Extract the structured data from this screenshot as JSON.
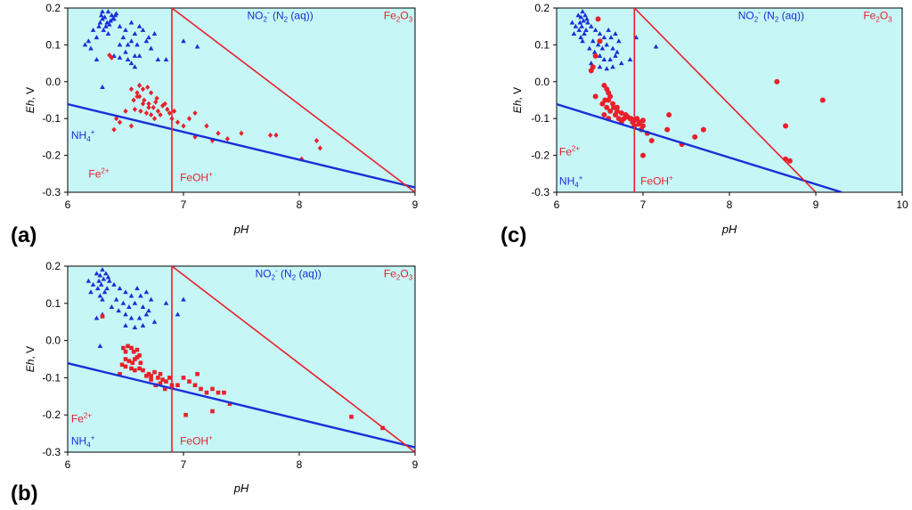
{
  "chart_data": [
    {
      "type": "scatter",
      "panel_label": "(a)",
      "xlabel": "pH",
      "ylabel_italic": "Eh",
      "ylabel_rest": ", V",
      "xlim": [
        6,
        9
      ],
      "ylim": [
        -0.3,
        0.2
      ],
      "xticks": [
        6,
        7,
        8,
        9
      ],
      "xtick_labels": [
        "6",
        "7",
        "8",
        "9"
      ],
      "yticks": [
        0.2,
        0.1,
        0.0,
        -0.1,
        -0.2,
        -0.3
      ],
      "ytick_labels": [
        "0.2",
        "0.1",
        "0.0",
        "-0.1",
        "-0.2",
        "-0.3"
      ],
      "colors": {
        "background": "#c6f6f6",
        "red": "#e8202a",
        "blue": "#1a2fd6"
      },
      "lines": [
        {
          "name": "NH4+/N2 boundary",
          "color": "blue",
          "width": 2.4,
          "points": [
            [
              6,
              -0.061
            ],
            [
              9,
              -0.287
            ]
          ]
        },
        {
          "name": "Fe2+/FeOH+ boundary",
          "color": "red",
          "width": 1.6,
          "points": [
            [
              6.9,
              0.2
            ],
            [
              6.9,
              -0.3
            ]
          ]
        },
        {
          "name": "FeOH+/Fe2O3 boundary",
          "color": "red",
          "width": 1.6,
          "points": [
            [
              6.9,
              0.2
            ],
            [
              9,
              -0.3
            ]
          ]
        }
      ],
      "annotations": [
        {
          "text": "NO",
          "sub": "2",
          "sup": "-",
          "tail": " (N",
          "sub2": "2",
          "tail2": " (aq))",
          "color": "blue",
          "x": 7.55,
          "y": 0.17
        },
        {
          "text": "Fe",
          "sub": "2",
          "tail": "O",
          "sub2": "3",
          "color": "red",
          "x": 8.73,
          "y": 0.17
        },
        {
          "text": "NH",
          "sub": "4",
          "sup": "+",
          "color": "blue",
          "x": 6.03,
          "y": -0.155
        },
        {
          "text": "Fe",
          "sup": "2+",
          "color": "red",
          "x": 6.18,
          "y": -0.26
        },
        {
          "text": "FeOH",
          "sup": "+",
          "color": "red",
          "x": 6.97,
          "y": -0.27
        }
      ],
      "series": [
        {
          "name": "NO2- (N2 aq) samples",
          "marker": "triangle",
          "color": "blue",
          "x": [
            6.35,
            6.38,
            6.4,
            6.42,
            6.32,
            6.3,
            6.28,
            6.33,
            6.37,
            6.36,
            6.31,
            6.39,
            6.41,
            6.34,
            6.29,
            6.3,
            6.27,
            6.35,
            6.22,
            6.25,
            6.45,
            6.5,
            6.55,
            6.58,
            6.62,
            6.65,
            6.7,
            6.75,
            6.55,
            6.6,
            6.48,
            6.52,
            6.68,
            6.72,
            6.45,
            6.5,
            6.58,
            6.2,
            6.15,
            6.18,
            6.25,
            6.4,
            6.45,
            6.52,
            6.62,
            6.78,
            6.55,
            6.85,
            6.58,
            7.0,
            7.12,
            6.3
          ],
          "y": [
            0.19,
            0.18,
            0.17,
            0.185,
            0.175,
            0.19,
            0.16,
            0.15,
            0.165,
            0.155,
            0.14,
            0.17,
            0.18,
            0.16,
            0.18,
            0.17,
            0.15,
            0.13,
            0.14,
            0.12,
            0.15,
            0.14,
            0.16,
            0.13,
            0.15,
            0.14,
            0.12,
            0.13,
            0.11,
            0.1,
            0.12,
            0.1,
            0.11,
            0.09,
            0.1,
            0.08,
            0.07,
            0.09,
            0.1,
            0.11,
            0.06,
            0.07,
            0.065,
            0.06,
            0.07,
            0.06,
            0.05,
            0.06,
            0.04,
            0.11,
            0.095,
            -0.015
          ]
        },
        {
          "name": "Eh-pH measurements (a)",
          "marker": "diamond",
          "color": "red",
          "x": [
            6.36,
            6.38,
            6.55,
            6.6,
            6.62,
            6.57,
            6.65,
            6.7,
            6.58,
            6.63,
            6.68,
            6.72,
            6.75,
            6.6,
            6.66,
            6.7,
            6.74,
            6.78,
            6.8,
            6.65,
            6.72,
            6.76,
            6.82,
            6.86,
            6.88,
            6.9,
            6.62,
            6.69,
            6.77,
            6.84,
            6.92,
            6.95,
            7.0,
            7.05,
            7.1,
            6.55,
            6.5,
            6.45,
            6.42,
            6.4,
            7.2,
            7.3,
            7.38,
            7.5,
            7.25,
            7.1,
            7.8,
            7.75,
            8.15,
            8.18,
            8.02
          ],
          "y": [
            0.072,
            0.065,
            -0.02,
            -0.03,
            -0.04,
            -0.05,
            -0.06,
            -0.07,
            -0.075,
            -0.08,
            -0.085,
            -0.09,
            -0.1,
            -0.04,
            -0.05,
            -0.06,
            -0.07,
            -0.08,
            -0.09,
            -0.02,
            -0.03,
            -0.055,
            -0.065,
            -0.075,
            -0.085,
            -0.1,
            -0.01,
            -0.015,
            -0.045,
            -0.06,
            -0.08,
            -0.11,
            -0.12,
            -0.1,
            -0.085,
            -0.12,
            -0.08,
            -0.11,
            -0.1,
            -0.13,
            -0.12,
            -0.14,
            -0.155,
            -0.14,
            -0.16,
            -0.15,
            -0.145,
            -0.145,
            -0.16,
            -0.18,
            -0.21
          ]
        }
      ]
    },
    {
      "type": "scatter",
      "panel_label": "(b)",
      "xlabel": "pH",
      "ylabel_italic": "Eh",
      "ylabel_rest": ", V",
      "xlim": [
        6,
        9
      ],
      "ylim": [
        -0.3,
        0.2
      ],
      "xticks": [
        6,
        7,
        8,
        9
      ],
      "xtick_labels": [
        "6",
        "7",
        "8",
        "9"
      ],
      "yticks": [
        0.2,
        0.1,
        0.0,
        -0.1,
        -0.2,
        -0.3
      ],
      "ytick_labels": [
        "0.2",
        "0.1",
        "0.0",
        "-0.1",
        "-0.2",
        "-0.3"
      ],
      "colors": {
        "background": "#c6f6f6",
        "red": "#e8202a",
        "blue": "#1a2fd6"
      },
      "lines": [
        {
          "name": "NH4+/N2 boundary",
          "color": "blue",
          "width": 2.4,
          "points": [
            [
              6,
              -0.061
            ],
            [
              9,
              -0.287
            ]
          ]
        },
        {
          "name": "Fe2+/FeOH+ boundary",
          "color": "red",
          "width": 1.6,
          "points": [
            [
              6.9,
              0.2
            ],
            [
              6.9,
              -0.3
            ]
          ]
        },
        {
          "name": "FeOH+/Fe2O3 boundary",
          "color": "red",
          "width": 1.6,
          "points": [
            [
              6.9,
              0.2
            ],
            [
              9,
              -0.3
            ]
          ]
        }
      ],
      "annotations": [
        {
          "text": "NO",
          "sub": "2",
          "sup": "-",
          "tail": " (N",
          "sub2": "2",
          "tail2": " (aq))",
          "color": "blue",
          "x": 7.62,
          "y": 0.17
        },
        {
          "text": "Fe",
          "sub": "2",
          "tail": "O",
          "sub2": "3",
          "color": "red",
          "x": 8.73,
          "y": 0.17
        },
        {
          "text": "Fe",
          "sup": "2+",
          "color": "red",
          "x": 6.03,
          "y": -0.22
        },
        {
          "text": "NH",
          "sub": "4",
          "sup": "+",
          "color": "blue",
          "x": 6.03,
          "y": -0.28
        },
        {
          "text": "FeOH",
          "sup": "+",
          "color": "red",
          "x": 6.97,
          "y": -0.28
        }
      ],
      "series": [
        {
          "name": "NO2- (N2 aq) samples",
          "marker": "triangle",
          "color": "blue",
          "x": [
            6.25,
            6.28,
            6.3,
            6.33,
            6.35,
            6.27,
            6.31,
            6.29,
            6.36,
            6.26,
            6.34,
            6.32,
            6.28,
            6.3,
            6.4,
            6.45,
            6.5,
            6.55,
            6.6,
            6.63,
            6.68,
            6.72,
            6.42,
            6.48,
            6.53,
            6.58,
            6.65,
            6.7,
            6.22,
            6.18,
            6.2,
            6.38,
            6.44,
            6.5,
            6.55,
            6.62,
            6.68,
            6.75,
            6.5,
            6.58,
            6.65,
            6.3,
            6.25,
            7.0,
            6.85,
            6.95,
            6.28
          ],
          "y": [
            0.18,
            0.175,
            0.19,
            0.18,
            0.17,
            0.16,
            0.165,
            0.15,
            0.16,
            0.14,
            0.14,
            0.13,
            0.12,
            0.11,
            0.15,
            0.14,
            0.13,
            0.12,
            0.14,
            0.12,
            0.13,
            0.11,
            0.11,
            0.1,
            0.09,
            0.1,
            0.09,
            0.08,
            0.15,
            0.16,
            0.13,
            0.09,
            0.08,
            0.07,
            0.06,
            0.06,
            0.07,
            0.05,
            0.04,
            0.035,
            0.04,
            0.07,
            0.06,
            0.11,
            0.1,
            0.07,
            -0.015
          ]
        },
        {
          "name": "Eh-pH measurements (b)",
          "marker": "square",
          "color": "red",
          "x": [
            6.3,
            6.48,
            6.5,
            6.52,
            6.55,
            6.57,
            6.6,
            6.62,
            6.5,
            6.53,
            6.56,
            6.58,
            6.6,
            6.63,
            6.45,
            6.47,
            6.5,
            6.55,
            6.58,
            6.62,
            6.65,
            6.7,
            6.72,
            6.75,
            6.78,
            6.8,
            6.82,
            6.85,
            6.88,
            6.9,
            6.68,
            6.72,
            6.76,
            6.8,
            6.84,
            6.9,
            6.95,
            7.0,
            7.05,
            7.1,
            7.15,
            7.2,
            7.12,
            7.25,
            7.3,
            7.35,
            7.4,
            7.02,
            7.25,
            8.45,
            8.72
          ],
          "y": [
            0.065,
            -0.02,
            -0.03,
            -0.015,
            -0.02,
            -0.03,
            -0.025,
            -0.04,
            -0.05,
            -0.055,
            -0.06,
            -0.05,
            -0.045,
            -0.06,
            -0.09,
            -0.065,
            -0.07,
            -0.075,
            -0.08,
            -0.075,
            -0.08,
            -0.09,
            -0.095,
            -0.085,
            -0.1,
            -0.09,
            -0.105,
            -0.11,
            -0.1,
            -0.12,
            -0.095,
            -0.105,
            -0.12,
            -0.115,
            -0.13,
            -0.125,
            -0.12,
            -0.1,
            -0.11,
            -0.12,
            -0.13,
            -0.14,
            -0.09,
            -0.13,
            -0.14,
            -0.14,
            -0.17,
            -0.2,
            -0.19,
            -0.205,
            -0.235
          ]
        }
      ]
    },
    {
      "type": "scatter",
      "panel_label": "(c)",
      "xlabel": "pH",
      "ylabel_italic": "Eh",
      "ylabel_rest": ", V",
      "xlim": [
        6,
        10
      ],
      "ylim": [
        -0.3,
        0.2
      ],
      "xticks": [
        6,
        7,
        8,
        9,
        10
      ],
      "xtick_labels": [
        "6",
        "7",
        "8",
        "9",
        "10"
      ],
      "yticks": [
        0.2,
        0.1,
        0.0,
        -0.1,
        -0.2,
        -0.3
      ],
      "ytick_labels": [
        "0.2",
        "0.1",
        "0.0",
        "-0.1",
        "-0.2",
        "-0.3"
      ],
      "colors": {
        "background": "#c6f6f6",
        "red": "#e8202a",
        "blue": "#1a2fd6"
      },
      "lines": [
        {
          "name": "NH4+/N2 boundary",
          "color": "blue",
          "width": 2.4,
          "points": [
            [
              6,
              -0.061
            ],
            [
              9.3,
              -0.3
            ]
          ]
        },
        {
          "name": "Fe2+/FeOH+ boundary",
          "color": "red",
          "width": 1.6,
          "points": [
            [
              6.9,
              0.2
            ],
            [
              6.9,
              -0.3
            ]
          ]
        },
        {
          "name": "FeOH+/Fe2O3 boundary",
          "color": "red",
          "width": 1.6,
          "points": [
            [
              6.9,
              0.2
            ],
            [
              9.0,
              -0.3
            ]
          ]
        }
      ],
      "annotations": [
        {
          "text": "NO",
          "sub": "2",
          "sup": "-",
          "tail": " (N",
          "sub2": "2",
          "tail2": " (aq))",
          "color": "blue",
          "x": 8.1,
          "y": 0.17
        },
        {
          "text": "Fe",
          "sub": "2",
          "tail": "O",
          "sub2": "3",
          "color": "red",
          "x": 9.55,
          "y": 0.17
        },
        {
          "text": "Fe",
          "sup": "2+",
          "color": "red",
          "x": 6.03,
          "y": -0.2
        },
        {
          "text": "NH",
          "sub": "4",
          "sup": "+",
          "color": "blue",
          "x": 6.03,
          "y": -0.28
        },
        {
          "text": "FeOH",
          "sup": "+",
          "color": "red",
          "x": 6.97,
          "y": -0.28
        }
      ],
      "series": [
        {
          "name": "NO2- (N2 aq) samples",
          "marker": "triangle",
          "color": "blue",
          "x": [
            6.25,
            6.28,
            6.3,
            6.33,
            6.35,
            6.27,
            6.31,
            6.29,
            6.36,
            6.26,
            6.34,
            6.32,
            6.28,
            6.3,
            6.4,
            6.45,
            6.5,
            6.55,
            6.6,
            6.63,
            6.68,
            6.72,
            6.42,
            6.48,
            6.53,
            6.58,
            6.65,
            6.7,
            6.22,
            6.18,
            6.2,
            6.38,
            6.44,
            6.5,
            6.55,
            6.62,
            6.68,
            6.75,
            6.5,
            6.58,
            6.65,
            6.92,
            7.15,
            6.85,
            6.4
          ],
          "y": [
            0.18,
            0.175,
            0.19,
            0.18,
            0.17,
            0.16,
            0.165,
            0.15,
            0.16,
            0.14,
            0.14,
            0.13,
            0.12,
            0.11,
            0.15,
            0.14,
            0.13,
            0.12,
            0.14,
            0.12,
            0.13,
            0.11,
            0.11,
            0.1,
            0.09,
            0.1,
            0.09,
            0.08,
            0.15,
            0.16,
            0.13,
            0.09,
            0.08,
            0.07,
            0.06,
            0.06,
            0.07,
            0.05,
            0.04,
            0.035,
            0.04,
            0.12,
            0.095,
            0.06,
            0.05
          ]
        },
        {
          "name": "Eh-pH measurements (c)",
          "marker": "circle",
          "color": "red",
          "x": [
            6.48,
            6.5,
            6.45,
            6.4,
            6.42,
            6.55,
            6.58,
            6.6,
            6.62,
            6.56,
            6.53,
            6.6,
            6.65,
            6.58,
            6.62,
            6.66,
            6.7,
            6.55,
            6.6,
            6.68,
            6.72,
            6.75,
            6.78,
            6.82,
            6.86,
            6.88,
            6.9,
            6.93,
            6.96,
            7.0,
            6.7,
            6.75,
            6.8,
            6.85,
            6.9,
            6.95,
            7.0,
            6.98,
            7.05,
            7.1,
            7.3,
            7.28,
            7.45,
            7.6,
            7.7,
            7.0,
            8.55,
            8.65,
            8.7,
            9.08,
            8.65,
            6.45
          ],
          "y": [
            0.17,
            0.11,
            0.07,
            0.03,
            0.04,
            -0.01,
            -0.02,
            -0.03,
            -0.04,
            -0.05,
            -0.06,
            -0.05,
            -0.06,
            -0.07,
            -0.08,
            -0.07,
            -0.08,
            -0.09,
            -0.1,
            -0.09,
            -0.1,
            -0.11,
            -0.1,
            -0.095,
            -0.1,
            -0.11,
            -0.12,
            -0.1,
            -0.11,
            -0.105,
            -0.07,
            -0.085,
            -0.09,
            -0.1,
            -0.105,
            -0.115,
            -0.12,
            -0.13,
            -0.14,
            -0.16,
            -0.09,
            -0.13,
            -0.17,
            -0.15,
            -0.13,
            -0.2,
            0.0,
            -0.12,
            -0.215,
            -0.05,
            -0.21,
            -0.04
          ]
        }
      ]
    }
  ]
}
